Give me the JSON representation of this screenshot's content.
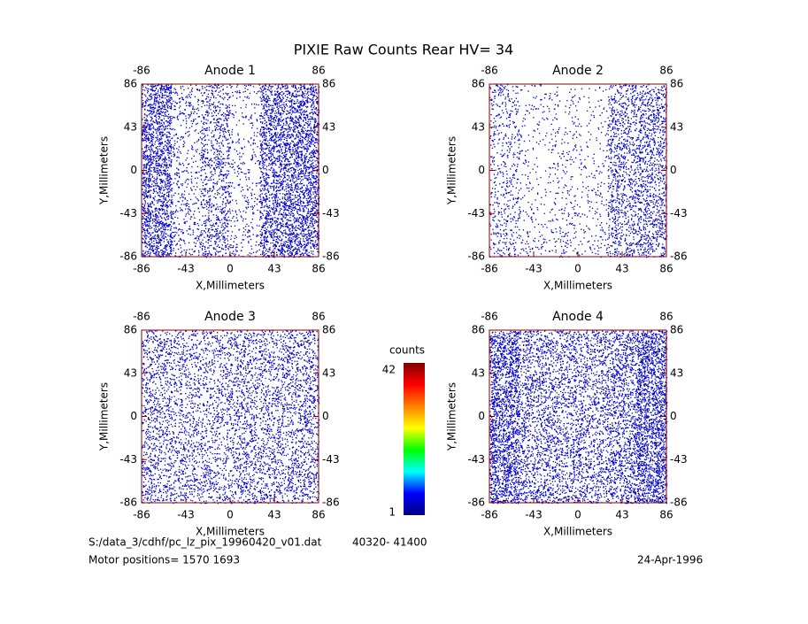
{
  "title": "PIXIE Raw Counts Rear HV= 34",
  "chart_data": [
    {
      "type": "density",
      "title": "Anode 1",
      "xlabel": "X,Millimeters",
      "ylabel": "Y,Millimeters",
      "color": "#0000cc",
      "xlim": [
        -86,
        86
      ],
      "ylim": [
        -86,
        86
      ],
      "y2lim": [
        -86,
        86
      ],
      "xticks": [
        -86,
        -43,
        0,
        43,
        86
      ],
      "xticks_top": [
        -86,
        86
      ],
      "yticks": [
        -86,
        -43,
        0,
        43,
        86
      ],
      "y2ticks": [
        -86,
        -43,
        0,
        43,
        86
      ],
      "density": [
        [
          48,
          14,
          22,
          8,
          40,
          45
        ],
        [
          46,
          12,
          24,
          8,
          42,
          46
        ],
        [
          48,
          10,
          26,
          10,
          44,
          48
        ],
        [
          46,
          12,
          22,
          8,
          42,
          46
        ],
        [
          48,
          14,
          24,
          10,
          44,
          48
        ],
        [
          46,
          16,
          26,
          12,
          44,
          46
        ]
      ]
    },
    {
      "type": "density",
      "title": "Anode 2",
      "xlabel": "X,Millimeters",
      "ylabel": "Y,Millimeters",
      "color": "#0000cc",
      "xlim": [
        -86,
        86
      ],
      "ylim": [
        -86,
        86
      ],
      "y2lim": [
        -86,
        86
      ],
      "xticks": [
        -86,
        -43,
        0,
        43,
        86
      ],
      "xticks_top": [
        -86,
        86
      ],
      "yticks": [
        -86,
        -43,
        0,
        43,
        86
      ],
      "y2ticks": [
        -86,
        -43,
        0,
        43,
        86
      ],
      "density": [
        [
          16,
          6,
          6,
          4,
          24,
          28
        ],
        [
          14,
          5,
          6,
          4,
          26,
          30
        ],
        [
          12,
          4,
          8,
          6,
          28,
          30
        ],
        [
          14,
          5,
          6,
          6,
          26,
          28
        ],
        [
          14,
          6,
          8,
          6,
          26,
          30
        ],
        [
          16,
          8,
          10,
          8,
          26,
          28
        ]
      ]
    },
    {
      "type": "density",
      "title": "Anode 3",
      "xlabel": "X,Millimeters",
      "ylabel": "Y,Millimeters",
      "color": "#0000cc",
      "xlim": [
        -86,
        86
      ],
      "ylim": [
        -86,
        86
      ],
      "y2lim": [
        -86,
        86
      ],
      "xticks": [
        -86,
        -43,
        0,
        43,
        86
      ],
      "xticks_top": [
        -86,
        86
      ],
      "yticks": [
        -86,
        -43,
        0,
        43,
        86
      ],
      "y2ticks": [
        -86,
        -43,
        0,
        43,
        86
      ],
      "density": [
        [
          24,
          20,
          20,
          22,
          22,
          26
        ],
        [
          22,
          20,
          18,
          24,
          24,
          24
        ],
        [
          24,
          18,
          20,
          24,
          24,
          26
        ],
        [
          22,
          20,
          18,
          22,
          22,
          24
        ],
        [
          24,
          20,
          20,
          24,
          24,
          26
        ],
        [
          24,
          22,
          22,
          24,
          24,
          26
        ]
      ]
    },
    {
      "type": "density",
      "title": "Anode 4",
      "xlabel": "X,Millimeters",
      "ylabel": "Y,Millimeters",
      "color": "#0000cc",
      "xlim": [
        -86,
        86
      ],
      "ylim": [
        -86,
        86
      ],
      "y2lim": [
        -86,
        86
      ],
      "xticks": [
        -86,
        -43,
        0,
        43,
        86
      ],
      "xticks_top": [
        -86,
        86
      ],
      "yticks": [
        -86,
        -43,
        0,
        43,
        86
      ],
      "y2ticks": [
        -86,
        -43,
        0,
        43,
        86
      ],
      "density": [
        [
          50,
          30,
          28,
          28,
          32,
          52
        ],
        [
          50,
          28,
          26,
          26,
          32,
          54
        ],
        [
          52,
          28,
          26,
          26,
          34,
          54
        ],
        [
          50,
          28,
          26,
          26,
          32,
          52
        ],
        [
          52,
          30,
          28,
          28,
          34,
          54
        ],
        [
          52,
          30,
          28,
          28,
          34,
          54
        ]
      ]
    }
  ],
  "colorbar": {
    "label": "counts",
    "ticks": [
      1,
      42
    ],
    "colors": [
      "#000080",
      "#0000ff",
      "#00ffff",
      "#00ff00",
      "#ffff00",
      "#ff8000",
      "#ff0000",
      "#800000"
    ]
  },
  "footer": {
    "file": "S:/data_3/cdhf/pc_lz_pix_19960420_v01.dat",
    "range": "40320- 41400",
    "motor": "Motor positions= 1570  1693",
    "date": "24-Apr-1996"
  }
}
